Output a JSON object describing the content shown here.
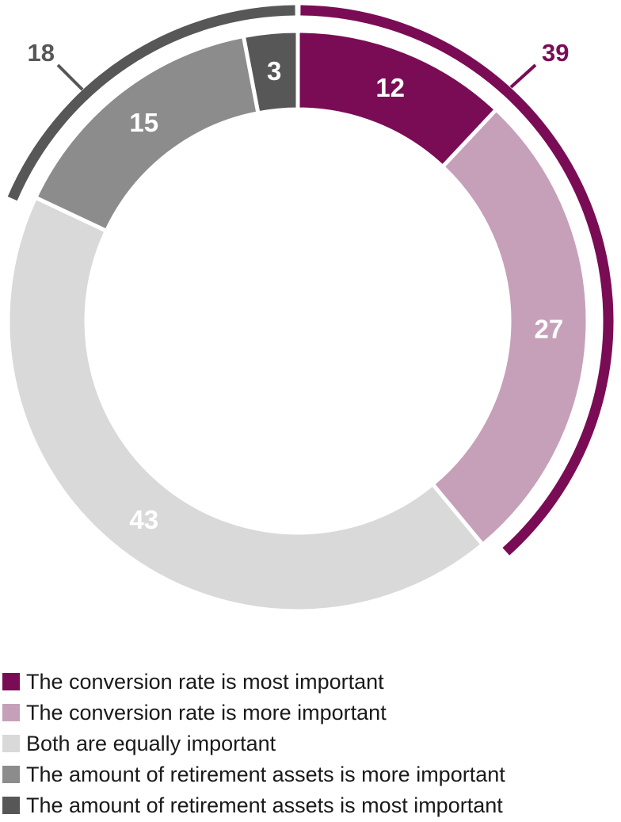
{
  "chart_data": {
    "type": "pie",
    "variant": "donut",
    "units": "percent",
    "start_angle_deg": 0,
    "direction": "clockwise",
    "background": "#ffffff",
    "value_label_color": "#ffffff",
    "separator_color": "#ffffff",
    "legend_position": "bottom-left",
    "segments": [
      {
        "label": "The conversion rate is most important",
        "value": 12,
        "color": "#7a0c55"
      },
      {
        "label": "The conversion rate is more important",
        "value": 27,
        "color": "#c6a0b9"
      },
      {
        "label": "Both are equally important",
        "value": 43,
        "color": "#d9d9d9"
      },
      {
        "label": "The amount of retirement assets is more important",
        "value": 15,
        "color": "#8c8c8c"
      },
      {
        "label": "The amount of retirement assets is most important",
        "value": 3,
        "color": "#575757"
      }
    ],
    "group_arcs": [
      {
        "label": "39",
        "value": 39,
        "start_percent": 0,
        "end_percent": 39,
        "color": "#7a0c55",
        "note": "outer bracket spanning the two conversion-rate segments"
      },
      {
        "label": "18",
        "value": 18,
        "start_percent": 82,
        "end_percent": 100,
        "color": "#575757",
        "note": "outer bracket spanning the two retirement-assets segments"
      }
    ]
  },
  "legend": {
    "items": [
      {
        "label": "The conversion rate is most important",
        "color": "#7a0c55"
      },
      {
        "label": "The conversion rate is more important",
        "color": "#c6a0b9"
      },
      {
        "label": "Both are equally important",
        "color": "#d9d9d9"
      },
      {
        "label": "The amount of retirement assets is more important",
        "color": "#8c8c8c"
      },
      {
        "label": "The amount of retirement assets is most important",
        "color": "#575757"
      }
    ]
  }
}
